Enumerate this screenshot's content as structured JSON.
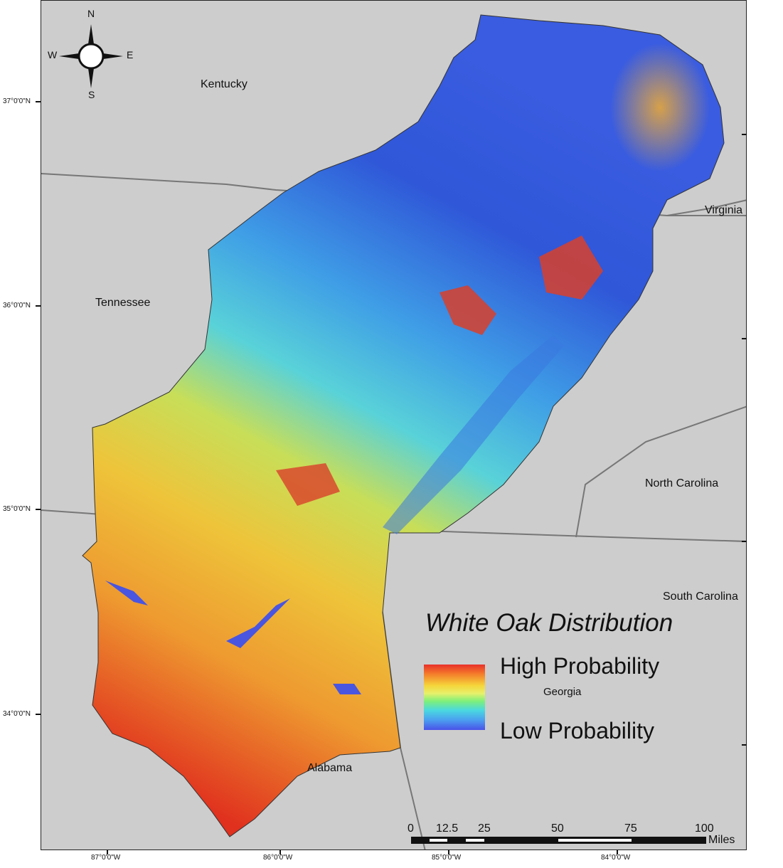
{
  "map": {
    "title": "White Oak Distribution",
    "legend": {
      "high_label": "High Probability",
      "low_label": "Low Probability",
      "ramp_colors": [
        "#e8302a",
        "#f47a2a",
        "#f5d53a",
        "#e8f06a",
        "#7ef07a",
        "#4ad8e0",
        "#4b9ef0",
        "#4a52e8"
      ]
    },
    "states": {
      "kentucky": "Kentucky",
      "virginia": "Virginia",
      "tennessee": "Tennessee",
      "north_carolina": "North Carolina",
      "south_carolina": "South Carolina",
      "georgia": "Georgia",
      "alabama": "Alabama"
    },
    "compass": {
      "n": "N",
      "s": "S",
      "e": "E",
      "w": "W"
    },
    "latitudes": [
      "37°0'0\"N",
      "36°0'0\"N",
      "35°0'0\"N",
      "34°0'0\"N"
    ],
    "longitudes": [
      "87°0'0\"W",
      "86°0'0\"W",
      "85°0'0\"W",
      "84°0'0\"W"
    ],
    "scale": {
      "ticks": [
        "0",
        "12.5",
        "25",
        "50",
        "75",
        "100"
      ],
      "unit": "Miles"
    }
  }
}
